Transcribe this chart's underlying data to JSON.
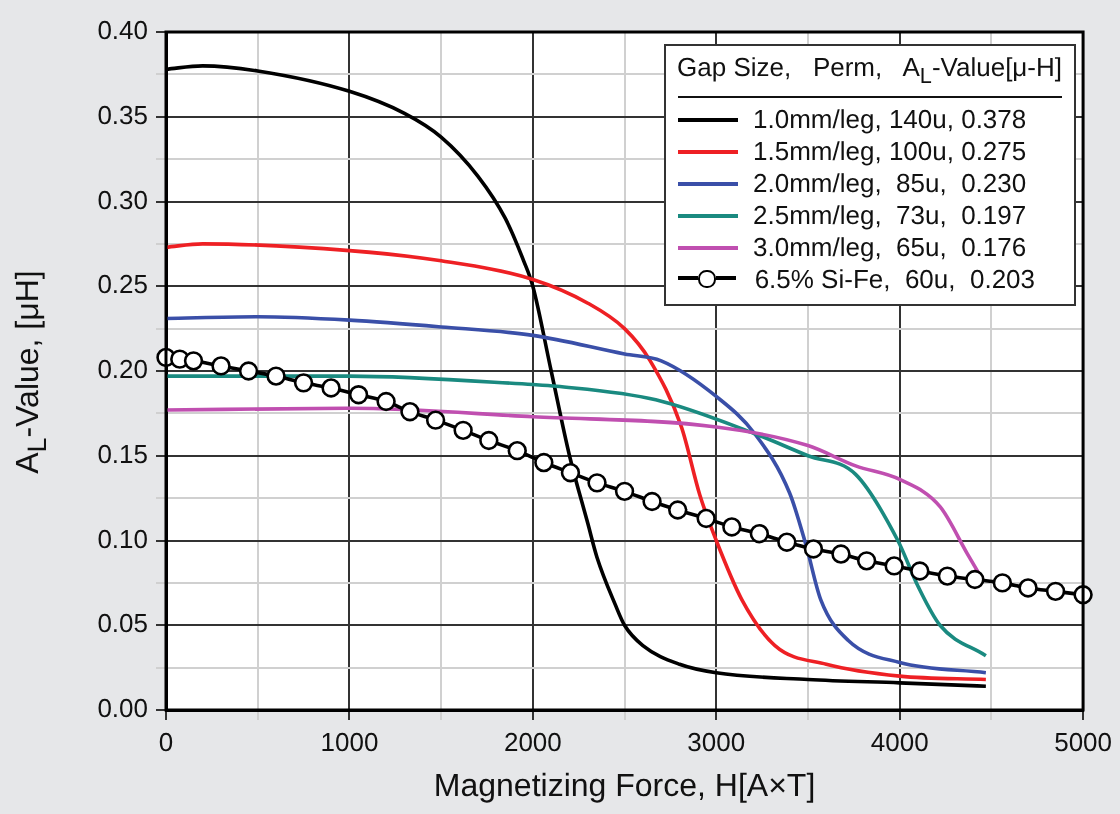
{
  "chart_data": {
    "type": "line",
    "xlabel": "Magnetizing Force, H[A×T]",
    "ylabel": "A$_{L}$-Value, [μH]",
    "legend_title": "Gap Size,   Perm,   A$_{L}$-Value[μ-H]",
    "legend": "top right",
    "grid": true,
    "marker": "none",
    "line_style": "solid",
    "xlim": [
      0,
      5000
    ],
    "xticks": [
      0,
      {
        "value": 500,
        "label": null
      },
      1000,
      {
        "value": 1500,
        "label": null
      },
      2000,
      {
        "value": 2500,
        "label": null
      },
      3000,
      {
        "value": 3500,
        "label": null
      },
      4000,
      {
        "value": 4500,
        "label": null
      },
      5000
    ],
    "ylim": [
      0,
      0.4
    ],
    "yticks": [
      {
        "value": 0,
        "label": "0.00"
      },
      {
        "value": 0.025,
        "label": null
      },
      {
        "value": 0.05,
        "label": "0.05"
      },
      {
        "value": 0.075,
        "label": null
      },
      {
        "value": 0.1,
        "label": "0.10"
      },
      {
        "value": 0.125,
        "label": null
      },
      {
        "value": 0.15,
        "label": "0.15"
      },
      {
        "value": 0.175,
        "label": null
      },
      {
        "value": 0.2,
        "label": "0.20"
      },
      {
        "value": 0.225,
        "label": null
      },
      {
        "value": 0.25,
        "label": "0.25"
      },
      {
        "value": 0.275,
        "label": null
      },
      {
        "value": 0.3,
        "label": "0.30"
      },
      {
        "value": 0.325,
        "label": null
      },
      {
        "value": 0.35,
        "label": "0.35"
      },
      {
        "value": 0.375,
        "label": null
      },
      {
        "value": 0.4,
        "label": "0.40"
      }
    ],
    "series": [
      {
        "name": "1.0mm/leg, 140u, 0.378",
        "color": "#000000",
        "x": [
          0,
          200,
          500,
          1000,
          1300,
          1500,
          1700,
          1850,
          1950,
          2000,
          2100,
          2200,
          2300,
          2350,
          2450,
          2500,
          2600,
          2800,
          3000,
          3500,
          4000,
          4470
        ],
        "values": [
          0.378,
          0.38,
          0.377,
          0.365,
          0.352,
          0.338,
          0.315,
          0.29,
          0.265,
          0.25,
          0.2,
          0.15,
          0.11,
          0.09,
          0.062,
          0.05,
          0.038,
          0.027,
          0.022,
          0.018,
          0.016,
          0.014
        ]
      },
      {
        "name": "1.5mm/leg, 100u, 0.275",
        "color": "#ee2024",
        "x": [
          0,
          200,
          1000,
          1500,
          2000,
          2300,
          2500,
          2640,
          2810,
          2910,
          3000,
          3140,
          3320,
          3600,
          4000,
          4470
        ],
        "values": [
          0.273,
          0.275,
          0.271,
          0.265,
          0.254,
          0.24,
          0.225,
          0.206,
          0.167,
          0.127,
          0.1,
          0.065,
          0.038,
          0.027,
          0.02,
          0.018
        ]
      },
      {
        "name": "2.0mm/leg,  85u,  0.230",
        "color": "#3a4fa8",
        "x": [
          0,
          500,
          1000,
          1500,
          2000,
          2500,
          2700,
          3000,
          3210,
          3400,
          3490,
          3570,
          3720,
          4000,
          4470
        ],
        "values": [
          0.231,
          0.232,
          0.23,
          0.226,
          0.221,
          0.21,
          0.206,
          0.185,
          0.163,
          0.128,
          0.097,
          0.065,
          0.041,
          0.028,
          0.022
        ]
      },
      {
        "name": "2.5mm/leg,  73u,  0.197",
        "color": "#1a8a80",
        "x": [
          0,
          1000,
          2000,
          2130,
          2670,
          3210,
          3500,
          3760,
          3990,
          4100,
          4220,
          4470
        ],
        "values": [
          0.197,
          0.197,
          0.192,
          0.191,
          0.183,
          0.163,
          0.15,
          0.139,
          0.1,
          0.073,
          0.05,
          0.032
        ]
      },
      {
        "name": "3.0mm/leg,  65u,  0.176",
        "color": "#c04fb0",
        "x": [
          0,
          1000,
          2000,
          3000,
          3500,
          3760,
          4000,
          4220,
          4370,
          4440
        ],
        "values": [
          0.177,
          0.178,
          0.173,
          0.167,
          0.156,
          0.144,
          0.136,
          0.12,
          0.092,
          0.079
        ]
      },
      {
        "name": "6.5% Si-Fe,  60u,  0.203",
        "color": "#000000",
        "marker": "circle",
        "x": [
          0,
          75,
          150,
          300,
          450,
          600,
          750,
          900,
          1050,
          1200,
          1330,
          1470,
          1620,
          1760,
          1915,
          2060,
          2205,
          2350,
          2500,
          2650,
          2790,
          2945,
          3085,
          3235,
          3385,
          3530,
          3680,
          3820,
          3970,
          4110,
          4260,
          4410,
          4560,
          4700,
          4850,
          5000
        ],
        "values": [
          0.208,
          0.207,
          0.206,
          0.203,
          0.2,
          0.197,
          0.193,
          0.19,
          0.186,
          0.182,
          0.176,
          0.171,
          0.165,
          0.159,
          0.153,
          0.146,
          0.14,
          0.134,
          0.129,
          0.123,
          0.118,
          0.113,
          0.108,
          0.104,
          0.099,
          0.095,
          0.092,
          0.088,
          0.085,
          0.082,
          0.079,
          0.077,
          0.075,
          0.072,
          0.07,
          0.068
        ]
      }
    ]
  }
}
